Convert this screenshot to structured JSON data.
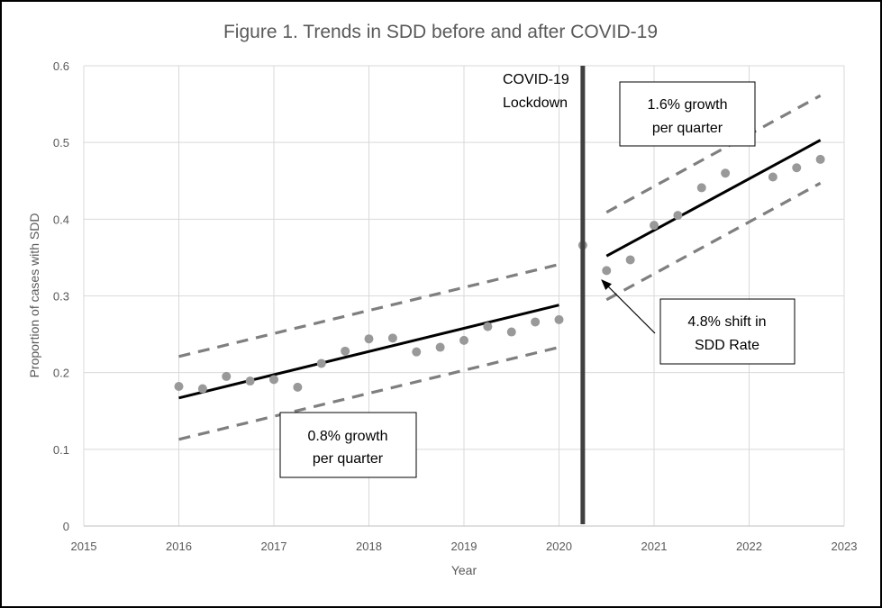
{
  "chart_data": {
    "type": "scatter",
    "title": "Figure 1. Trends in SDD before and after COVID-19",
    "xlabel": "Year",
    "ylabel": "Proportion of cases with SDD",
    "xlim": [
      2015,
      2023
    ],
    "ylim": [
      0,
      0.6
    ],
    "x_ticks": [
      "2015",
      "2016",
      "2017",
      "2018",
      "2019",
      "2020",
      "2021",
      "2022",
      "2023"
    ],
    "y_ticks": [
      "0",
      "0.1",
      "0.2",
      "0.3",
      "0.4",
      "0.5",
      "0.6"
    ],
    "grid": true,
    "colors": {
      "points": "#999999",
      "trend": "#000000",
      "ci": "#7f7f7f",
      "lockdown": "#404040"
    },
    "points": [
      {
        "x": 2016.0,
        "y": 0.182
      },
      {
        "x": 2016.25,
        "y": 0.179
      },
      {
        "x": 2016.5,
        "y": 0.195
      },
      {
        "x": 2016.75,
        "y": 0.189
      },
      {
        "x": 2017.0,
        "y": 0.191
      },
      {
        "x": 2017.25,
        "y": 0.181
      },
      {
        "x": 2017.5,
        "y": 0.212
      },
      {
        "x": 2017.75,
        "y": 0.228
      },
      {
        "x": 2018.0,
        "y": 0.244
      },
      {
        "x": 2018.25,
        "y": 0.245
      },
      {
        "x": 2018.5,
        "y": 0.227
      },
      {
        "x": 2018.75,
        "y": 0.233
      },
      {
        "x": 2019.0,
        "y": 0.242
      },
      {
        "x": 2019.25,
        "y": 0.26
      },
      {
        "x": 2019.5,
        "y": 0.253
      },
      {
        "x": 2019.75,
        "y": 0.266
      },
      {
        "x": 2020.0,
        "y": 0.269
      },
      {
        "x": 2020.25,
        "y": 0.366
      },
      {
        "x": 2020.5,
        "y": 0.333
      },
      {
        "x": 2020.75,
        "y": 0.347
      },
      {
        "x": 2021.0,
        "y": 0.392
      },
      {
        "x": 2021.25,
        "y": 0.405
      },
      {
        "x": 2021.5,
        "y": 0.441
      },
      {
        "x": 2021.75,
        "y": 0.46
      },
      {
        "x": 2022.25,
        "y": 0.455
      },
      {
        "x": 2022.5,
        "y": 0.467
      },
      {
        "x": 2022.75,
        "y": 0.478
      }
    ],
    "trend_lines": [
      {
        "x": [
          2016.0,
          2020.0
        ],
        "y": [
          0.167,
          0.288
        ]
      },
      {
        "x": [
          2020.5,
          2022.75
        ],
        "y": [
          0.352,
          0.503
        ]
      }
    ],
    "ci_lines": [
      {
        "x": [
          2016.0,
          2020.0
        ],
        "y": [
          0.221,
          0.341
        ]
      },
      {
        "x": [
          2016.0,
          2020.0
        ],
        "y": [
          0.113,
          0.233
        ]
      },
      {
        "x": [
          2020.5,
          2022.75
        ],
        "y": [
          0.409,
          0.561
        ]
      },
      {
        "x": [
          2020.5,
          2022.75
        ],
        "y": [
          0.295,
          0.447
        ]
      }
    ],
    "lockdown": {
      "x": 2020.25,
      "label_line1": "COVID-19",
      "label_line2": "Lockdown"
    },
    "annotations": {
      "growth_pre": {
        "line1": "0.8% growth",
        "line2": "per quarter"
      },
      "growth_post": {
        "line1": "1.6% growth",
        "line2": "per quarter"
      },
      "shift": {
        "line1": "4.8% shift in",
        "line2": "SDD Rate"
      }
    }
  }
}
